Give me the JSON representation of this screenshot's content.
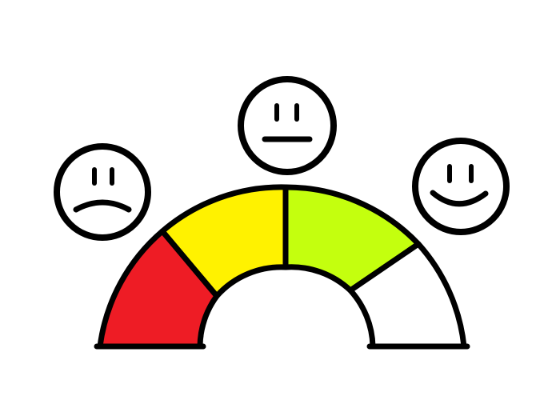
{
  "gauge": {
    "segments": [
      {
        "name": "red",
        "color": "#EE1C25"
      },
      {
        "name": "yellow",
        "color": "#FFF200"
      },
      {
        "name": "lime",
        "color": "#C4FF0E"
      },
      {
        "name": "white",
        "color": "#FFFFFF"
      }
    ],
    "outline_color": "#000000"
  },
  "faces": [
    {
      "name": "sad-face-icon",
      "mood": "sad"
    },
    {
      "name": "neutral-face-icon",
      "mood": "neutral"
    },
    {
      "name": "happy-face-icon",
      "mood": "happy"
    }
  ]
}
